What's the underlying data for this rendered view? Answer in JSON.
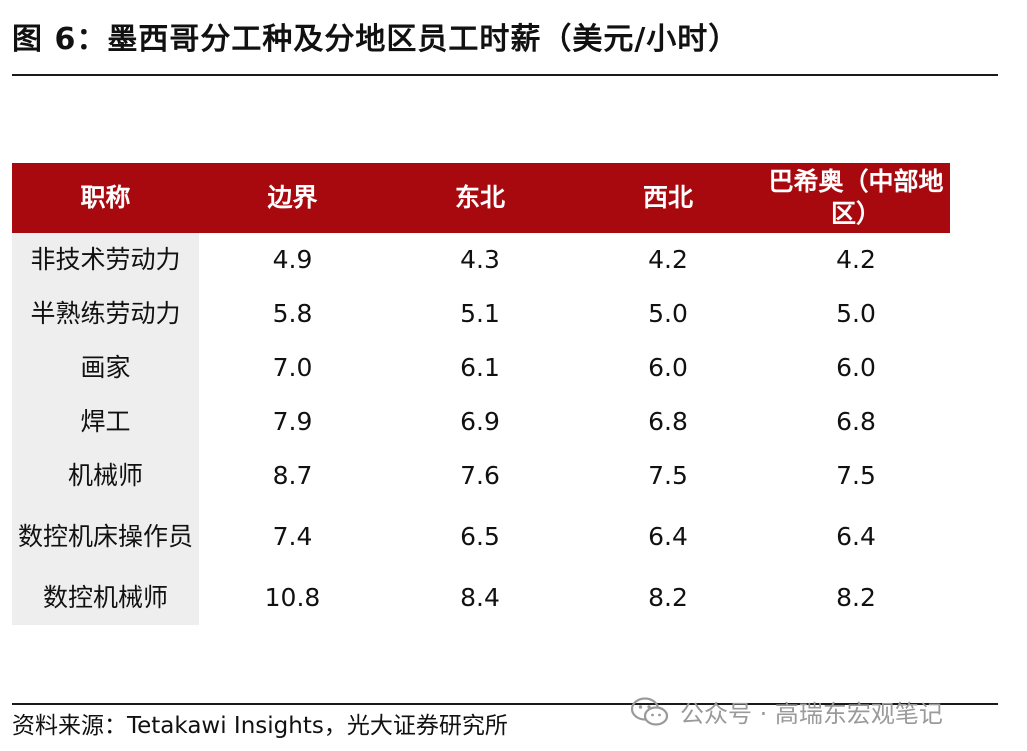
{
  "title": "图 6：墨西哥分工种及分地区员工时薪（美元/小时）",
  "table": {
    "headers": [
      "职称",
      "边界",
      "东北",
      "西北",
      "巴希奥（中部地区）"
    ],
    "rows": [
      {
        "label": "非技术劳动力",
        "values": [
          "4.9",
          "4.3",
          "4.2",
          "4.2"
        ]
      },
      {
        "label": "半熟练劳动力",
        "values": [
          "5.8",
          "5.1",
          "5.0",
          "5.0"
        ]
      },
      {
        "label": "画家",
        "values": [
          "7.0",
          "6.1",
          "6.0",
          "6.0"
        ]
      },
      {
        "label": "焊工",
        "values": [
          "7.9",
          "6.9",
          "6.8",
          "6.8"
        ]
      },
      {
        "label": "机械师",
        "values": [
          "8.7",
          "7.6",
          "7.5",
          "7.5"
        ]
      },
      {
        "label": "数控机床操作员",
        "values": [
          "7.4",
          "6.5",
          "6.4",
          "6.4"
        ]
      },
      {
        "label": "数控机械师",
        "values": [
          "10.8",
          "8.4",
          "8.2",
          "8.2"
        ]
      }
    ]
  },
  "source": "资料来源：Tetakawi Insights，光大证券研究所",
  "watermark": {
    "text": "公众号 · 高瑞东宏观笔记",
    "icon": "wechat-icon"
  },
  "colors": {
    "header_bg": "#a8090f",
    "label_bg": "#eeeeee"
  }
}
